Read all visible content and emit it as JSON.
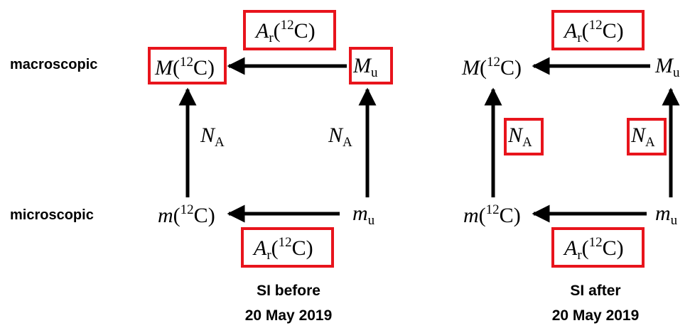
{
  "row_labels": {
    "macro": "macroscopic",
    "micro": "microscopic"
  },
  "symbols": {
    "M": "M",
    "m": "m",
    "C": "C",
    "mass_number": "12",
    "Ar_A": "A",
    "Ar_sub": "r",
    "NA_N": "N",
    "NA_sub": "A",
    "u_sub": "u",
    "open": "(",
    "close": ")"
  },
  "captions": {
    "before_line1": "SI before",
    "before_line2": "20 May 2019",
    "after_line1": "SI after",
    "after_line2": "20 May 2019"
  },
  "colors": {
    "highlight": "#e8141c",
    "arrow": "#000000"
  }
}
